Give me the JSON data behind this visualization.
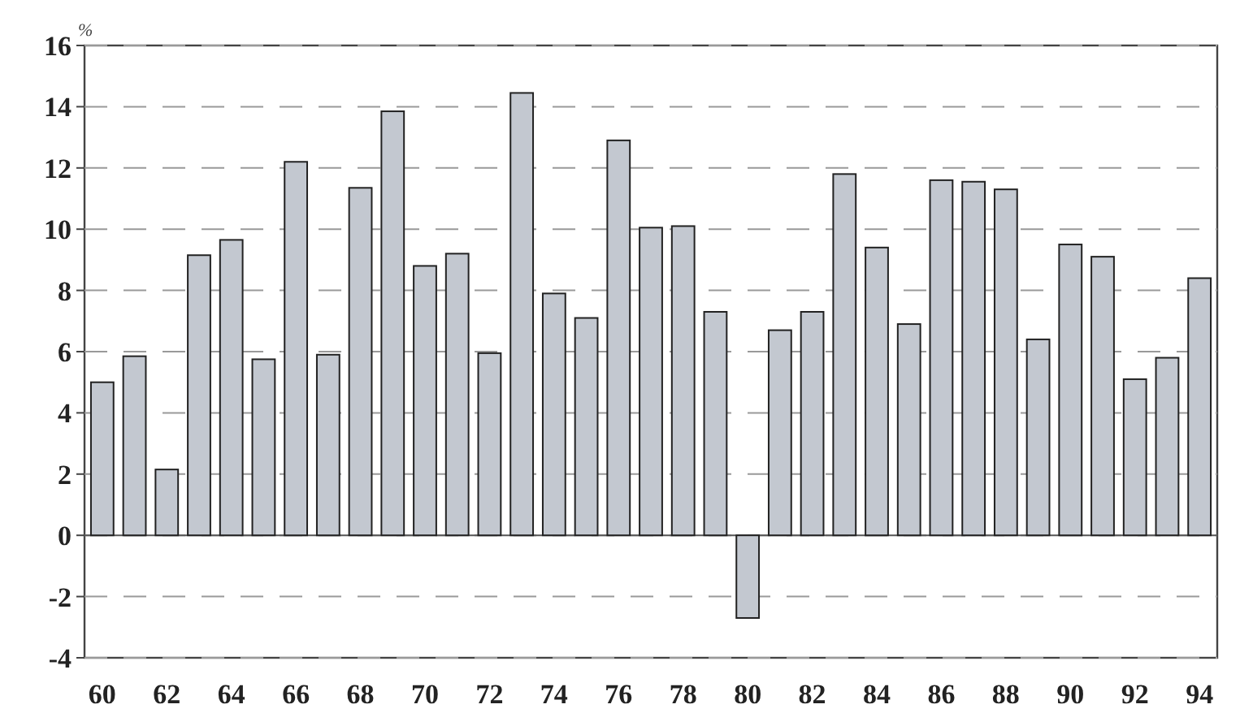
{
  "chart_data": {
    "type": "bar",
    "ylabel": "%",
    "categories": [
      "60",
      null,
      "62",
      null,
      "64",
      null,
      "66",
      null,
      "68",
      null,
      "70",
      null,
      "72",
      null,
      "74",
      null,
      "76",
      null,
      "78",
      null,
      "80",
      null,
      "82",
      null,
      "84",
      null,
      "86",
      null,
      "88",
      null,
      "90",
      null,
      "92",
      null,
      "94"
    ],
    "values": [
      5.0,
      5.85,
      2.15,
      9.15,
      9.65,
      5.75,
      12.2,
      5.9,
      11.35,
      13.85,
      8.8,
      9.2,
      5.95,
      14.45,
      7.9,
      7.1,
      12.9,
      10.05,
      10.1,
      7.3,
      -2.7,
      6.7,
      7.3,
      11.8,
      9.4,
      6.9,
      11.6,
      11.55,
      11.3,
      6.4,
      9.5,
      9.1,
      5.1,
      5.8,
      8.4
    ],
    "color": "#c3c8d0",
    "ylim": [
      -4,
      16
    ],
    "yticks": [
      -4,
      -2,
      0,
      2,
      4,
      6,
      8,
      10,
      12,
      14,
      16
    ],
    "grid": "y"
  }
}
